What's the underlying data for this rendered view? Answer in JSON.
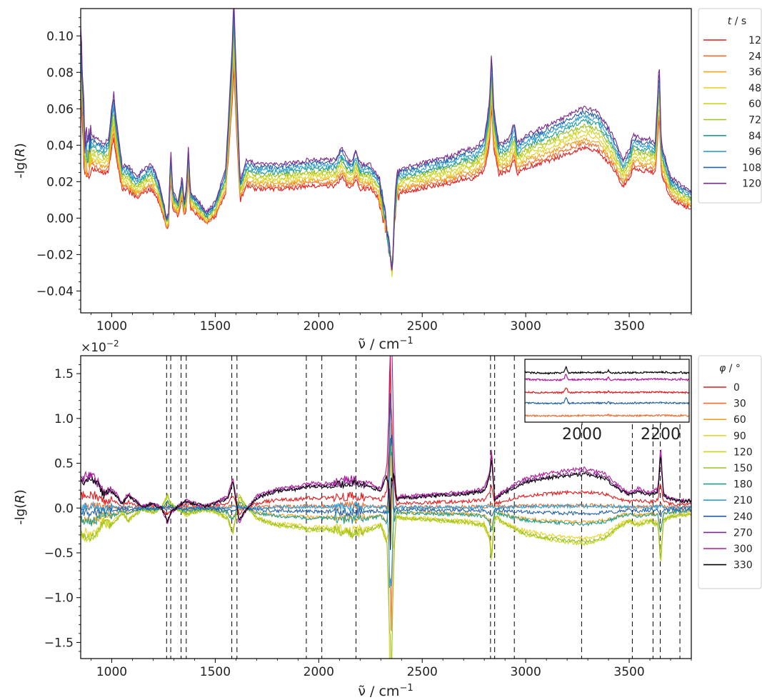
{
  "chart_data": [
    {
      "type": "line",
      "xlabel_symbol": "ν̃",
      "xlabel_unit": " / cm",
      "xlabel_exp": "−1",
      "ylabel_prefix": "-lg(",
      "ylabel_var": "R",
      "ylabel_suffix": ")",
      "xlim": [
        850,
        3800
      ],
      "ylim": [
        -0.052,
        0.115
      ],
      "x_ticks": [
        1000,
        1500,
        2000,
        2500,
        3000,
        3500
      ],
      "x_tick_labels": [
        "1000",
        "1500",
        "2000",
        "2500",
        "3000",
        "3500"
      ],
      "y_ticks": [
        -0.04,
        -0.02,
        0.0,
        0.02,
        0.04,
        0.06,
        0.08,
        0.1
      ],
      "y_tick_labels": [
        "−0.04",
        "−0.02",
        "0.00",
        "0.02",
        "0.04",
        "0.06",
        "0.08",
        "0.10"
      ],
      "grid": false,
      "legend": {
        "title_var": "t",
        "title_unit": " / s",
        "placement": "outside-right",
        "entries": [
          "12",
          "24",
          "36",
          "48",
          "60",
          "72",
          "84",
          "96",
          "108",
          "120"
        ]
      },
      "series_colors": [
        "#e41a1c",
        "#f46d2a",
        "#f2a11f",
        "#e7d42a",
        "#c9d61f",
        "#9cc226",
        "#1f9e8f",
        "#2b9fd6",
        "#2461a8",
        "#7a2a8c"
      ],
      "base_curve": [
        [
          850,
          0.085
        ],
        [
          870,
          0.03
        ],
        [
          900,
          0.032
        ],
        [
          960,
          0.028
        ],
        [
          985,
          0.03
        ],
        [
          1000,
          0.045
        ],
        [
          1010,
          0.052
        ],
        [
          1020,
          0.04
        ],
        [
          1050,
          0.018
        ],
        [
          1080,
          0.017
        ],
        [
          1120,
          0.012
        ],
        [
          1150,
          0.015
        ],
        [
          1190,
          0.018
        ],
        [
          1220,
          0.012
        ],
        [
          1250,
          0.0
        ],
        [
          1265,
          -0.008
        ],
        [
          1275,
          -0.005
        ],
        [
          1285,
          0.025
        ],
        [
          1295,
          0.005
        ],
        [
          1320,
          0.0
        ],
        [
          1340,
          0.012
        ],
        [
          1350,
          0.0
        ],
        [
          1360,
          0.005
        ],
        [
          1370,
          0.027
        ],
        [
          1380,
          0.005
        ],
        [
          1420,
          0.0
        ],
        [
          1460,
          -0.005
        ],
        [
          1500,
          0.0
        ],
        [
          1550,
          0.015
        ],
        [
          1580,
          0.07
        ],
        [
          1590,
          0.098
        ],
        [
          1600,
          0.065
        ],
        [
          1620,
          0.01
        ],
        [
          1650,
          0.02
        ],
        [
          1700,
          0.018
        ],
        [
          1800,
          0.018
        ],
        [
          1900,
          0.019
        ],
        [
          1950,
          0.02
        ],
        [
          2000,
          0.02
        ],
        [
          2080,
          0.02
        ],
        [
          2110,
          0.026
        ],
        [
          2140,
          0.02
        ],
        [
          2160,
          0.019
        ],
        [
          2180,
          0.025
        ],
        [
          2200,
          0.018
        ],
        [
          2250,
          0.018
        ],
        [
          2290,
          0.012
        ],
        [
          2320,
          -0.005
        ],
        [
          2345,
          -0.025
        ],
        [
          2355,
          -0.035
        ],
        [
          2365,
          -0.005
        ],
        [
          2380,
          0.015
        ],
        [
          2450,
          0.017
        ],
        [
          2550,
          0.02
        ],
        [
          2650,
          0.022
        ],
        [
          2700,
          0.025
        ],
        [
          2750,
          0.025
        ],
        [
          2800,
          0.03
        ],
        [
          2825,
          0.048
        ],
        [
          2835,
          0.073
        ],
        [
          2845,
          0.045
        ],
        [
          2870,
          0.028
        ],
        [
          2920,
          0.03
        ],
        [
          2945,
          0.038
        ],
        [
          2960,
          0.028
        ],
        [
          3000,
          0.032
        ],
        [
          3100,
          0.036
        ],
        [
          3200,
          0.041
        ],
        [
          3280,
          0.045
        ],
        [
          3350,
          0.043
        ],
        [
          3420,
          0.032
        ],
        [
          3470,
          0.02
        ],
        [
          3500,
          0.025
        ],
        [
          3520,
          0.032
        ],
        [
          3560,
          0.03
        ],
        [
          3600,
          0.03
        ],
        [
          3625,
          0.028
        ],
        [
          3635,
          0.045
        ],
        [
          3645,
          0.068
        ],
        [
          3655,
          0.028
        ],
        [
          3700,
          0.012
        ],
        [
          3750,
          0.008
        ],
        [
          3800,
          0.005
        ]
      ]
    },
    {
      "type": "line",
      "xlabel_symbol": "ν̃",
      "xlabel_unit": " / cm",
      "xlabel_exp": "−1",
      "ylabel_prefix": "-lg(",
      "ylabel_var": "R",
      "ylabel_suffix": ")",
      "scale_note_base": "×10",
      "scale_note_exp": "−2",
      "xlim": [
        850,
        3800
      ],
      "ylim": [
        -1.68,
        1.7
      ],
      "x_ticks": [
        1000,
        1500,
        2000,
        2500,
        3000,
        3500
      ],
      "x_tick_labels": [
        "1000",
        "1500",
        "2000",
        "2500",
        "3000",
        "3500"
      ],
      "y_ticks": [
        -1.5,
        -1.0,
        -0.5,
        0.0,
        0.5,
        1.0,
        1.5
      ],
      "y_tick_labels": [
        "−1.5",
        "−1.0",
        "−0.5",
        "0.0",
        "0.5",
        "1.0",
        "1.5"
      ],
      "grid": false,
      "vlines": [
        1265,
        1285,
        1335,
        1360,
        1580,
        1605,
        1940,
        2015,
        2180,
        2830,
        2850,
        2945,
        3270,
        3515,
        3615,
        3650,
        3745
      ],
      "legend": {
        "title_var": "φ",
        "title_unit": " / °",
        "placement": "outside-right",
        "entries": [
          "0",
          "30",
          "60",
          "90",
          "120",
          "150",
          "180",
          "210",
          "240",
          "270",
          "300",
          "330"
        ]
      },
      "series_colors": [
        "#e41a1c",
        "#f46d2a",
        "#f2a11f",
        "#e7d42a",
        "#c9d61f",
        "#9cc226",
        "#1f9e8f",
        "#2b9fd6",
        "#2461a8",
        "#7a2a8c",
        "#b01a9c",
        "#000000"
      ],
      "series_amplitudes": [
        0.45,
        0.08,
        -0.4,
        -0.85,
        -1.0,
        -0.95,
        -0.45,
        0.05,
        -0.15,
        1.0,
        1.1,
        0.95
      ],
      "base_curve": [
        [
          850,
          0.3
        ],
        [
          880,
          0.33
        ],
        [
          900,
          0.35
        ],
        [
          930,
          0.28
        ],
        [
          960,
          0.15
        ],
        [
          990,
          0.2
        ],
        [
          1020,
          0.15
        ],
        [
          1050,
          0.05
        ],
        [
          1080,
          0.15
        ],
        [
          1100,
          0.1
        ],
        [
          1150,
          0.02
        ],
        [
          1200,
          0.05
        ],
        [
          1240,
          0.0
        ],
        [
          1270,
          -0.15
        ],
        [
          1285,
          -0.05
        ],
        [
          1320,
          0.02
        ],
        [
          1360,
          0.08
        ],
        [
          1400,
          0.05
        ],
        [
          1450,
          0.02
        ],
        [
          1500,
          0.05
        ],
        [
          1560,
          0.12
        ],
        [
          1585,
          0.3
        ],
        [
          1600,
          0.1
        ],
        [
          1615,
          -0.15
        ],
        [
          1640,
          -0.05
        ],
        [
          1700,
          0.12
        ],
        [
          1800,
          0.2
        ],
        [
          1900,
          0.22
        ],
        [
          1950,
          0.25
        ],
        [
          2000,
          0.25
        ],
        [
          2050,
          0.25
        ],
        [
          2100,
          0.27
        ],
        [
          2150,
          0.3
        ],
        [
          2200,
          0.28
        ],
        [
          2250,
          0.25
        ],
        [
          2300,
          0.2
        ],
        [
          2330,
          0.4
        ],
        [
          2350,
          1.0
        ],
        [
          2360,
          0.6
        ],
        [
          2375,
          0.1
        ],
        [
          2400,
          0.12
        ],
        [
          2500,
          0.13
        ],
        [
          2600,
          0.15
        ],
        [
          2700,
          0.16
        ],
        [
          2800,
          0.2
        ],
        [
          2825,
          0.35
        ],
        [
          2835,
          0.6
        ],
        [
          2850,
          0.1
        ],
        [
          2880,
          0.15
        ],
        [
          2950,
          0.25
        ],
        [
          3000,
          0.3
        ],
        [
          3100,
          0.35
        ],
        [
          3200,
          0.38
        ],
        [
          3280,
          0.4
        ],
        [
          3380,
          0.35
        ],
        [
          3450,
          0.22
        ],
        [
          3500,
          0.15
        ],
        [
          3540,
          0.2
        ],
        [
          3600,
          0.15
        ],
        [
          3640,
          0.2
        ],
        [
          3652,
          0.65
        ],
        [
          3665,
          0.15
        ],
        [
          3700,
          0.1
        ],
        [
          3750,
          0.08
        ],
        [
          3800,
          0.08
        ]
      ],
      "inset": {
        "xlim": [
          850,
          3800
        ],
        "x_ticks": [
          2000,
          2200
        ],
        "x_tick_labels": [
          "2000",
          "2200"
        ],
        "series": [
          "#000000",
          "#b01a9c",
          "#e41a1c",
          "#2461a8",
          "#f46d2a"
        ]
      }
    }
  ]
}
